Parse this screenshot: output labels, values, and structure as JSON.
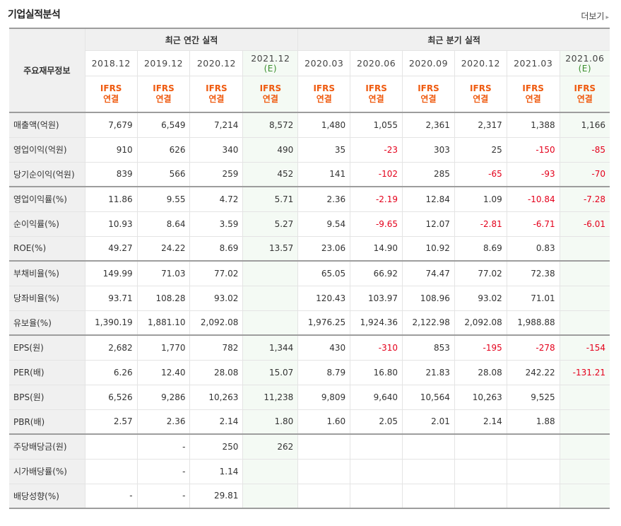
{
  "page": {
    "title": "기업실적분석",
    "more_label": "더보기",
    "more_arrow": "▸"
  },
  "table": {
    "row_header_label": "주요재무정보",
    "group_annual": "최근 연간 실적",
    "group_quarter": "최근 분기 실적",
    "periods": [
      {
        "label": "2018.12",
        "estimate": ""
      },
      {
        "label": "2019.12",
        "estimate": ""
      },
      {
        "label": "2020.12",
        "estimate": ""
      },
      {
        "label": "2021.12",
        "estimate": "(E)"
      },
      {
        "label": "2020.03",
        "estimate": ""
      },
      {
        "label": "2020.06",
        "estimate": ""
      },
      {
        "label": "2020.09",
        "estimate": ""
      },
      {
        "label": "2020.12",
        "estimate": ""
      },
      {
        "label": "2021.03",
        "estimate": ""
      },
      {
        "label": "2021.06",
        "estimate": "(E)"
      }
    ],
    "basis_line1": "IFRS",
    "basis_line2": "연결",
    "rows": [
      {
        "label": "매출액(억원)",
        "values": [
          "7,679",
          "6,549",
          "7,214",
          "8,572",
          "1,480",
          "1,055",
          "2,361",
          "2,317",
          "1,388",
          "1,166"
        ]
      },
      {
        "label": "영업이익(억원)",
        "values": [
          "910",
          "626",
          "340",
          "490",
          "35",
          "-23",
          "303",
          "25",
          "-150",
          "-85"
        ]
      },
      {
        "label": "당기순이익(억원)",
        "values": [
          "839",
          "566",
          "259",
          "452",
          "141",
          "-102",
          "285",
          "-65",
          "-93",
          "-70"
        ]
      },
      {
        "label": "영업이익률(%)",
        "values": [
          "11.86",
          "9.55",
          "4.72",
          "5.71",
          "2.36",
          "-2.19",
          "12.84",
          "1.09",
          "-10.84",
          "-7.28"
        ]
      },
      {
        "label": "순이익률(%)",
        "values": [
          "10.93",
          "8.64",
          "3.59",
          "5.27",
          "9.54",
          "-9.65",
          "12.07",
          "-2.81",
          "-6.71",
          "-6.01"
        ]
      },
      {
        "label": "ROE(%)",
        "values": [
          "49.27",
          "24.22",
          "8.69",
          "13.57",
          "23.06",
          "14.90",
          "10.92",
          "8.69",
          "0.83",
          ""
        ]
      },
      {
        "label": "부채비율(%)",
        "values": [
          "149.99",
          "71.03",
          "77.02",
          "",
          "65.05",
          "66.92",
          "74.47",
          "77.02",
          "72.38",
          ""
        ]
      },
      {
        "label": "당좌비율(%)",
        "values": [
          "93.71",
          "108.28",
          "93.02",
          "",
          "120.43",
          "103.97",
          "108.96",
          "93.02",
          "71.01",
          ""
        ]
      },
      {
        "label": "유보율(%)",
        "values": [
          "1,390.19",
          "1,881.10",
          "2,092.08",
          "",
          "1,976.25",
          "1,924.36",
          "2,122.98",
          "2,092.08",
          "1,988.88",
          ""
        ]
      },
      {
        "label": "EPS(원)",
        "values": [
          "2,682",
          "1,770",
          "782",
          "1,344",
          "430",
          "-310",
          "853",
          "-195",
          "-278",
          "-154"
        ]
      },
      {
        "label": "PER(배)",
        "values": [
          "6.26",
          "12.40",
          "28.08",
          "15.07",
          "8.79",
          "16.80",
          "21.83",
          "28.08",
          "242.22",
          "-131.21"
        ]
      },
      {
        "label": "BPS(원)",
        "values": [
          "6,526",
          "9,286",
          "10,263",
          "11,238",
          "9,809",
          "9,640",
          "10,564",
          "10,263",
          "9,525",
          ""
        ]
      },
      {
        "label": "PBR(배)",
        "values": [
          "2.57",
          "2.36",
          "2.14",
          "1.80",
          "1.60",
          "2.05",
          "2.01",
          "2.14",
          "1.88",
          ""
        ]
      },
      {
        "label": "주당배당금(원)",
        "values": [
          "",
          "-",
          "250",
          "262",
          "",
          "",
          "",
          "",
          "",
          ""
        ]
      },
      {
        "label": "시가배당률(%)",
        "values": [
          "",
          "-",
          "1.14",
          "",
          "",
          "",
          "",
          "",
          "",
          ""
        ]
      },
      {
        "label": "배당성향(%)",
        "values": [
          "-",
          "-",
          "29.81",
          "",
          "",
          "",
          "",
          "",
          "",
          ""
        ]
      }
    ],
    "colors": {
      "negative": "#e4001b",
      "ifrs": "#ef5a0f",
      "estimate_label": "#3a8e2d",
      "estimate_bg": "#f4faf4",
      "header_bg": "#f0f0f0"
    }
  }
}
